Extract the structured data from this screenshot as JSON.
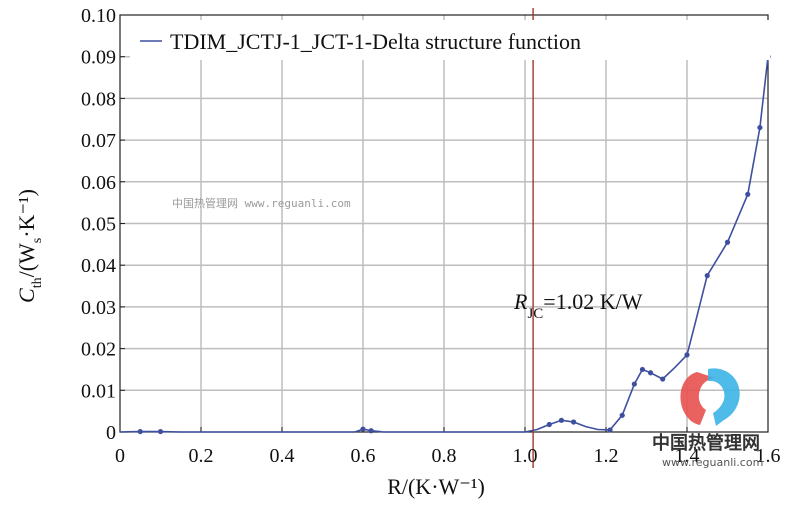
{
  "chart_data": {
    "type": "line",
    "xlabel": "R/(K·W⁻¹)",
    "ylabel_main": "C",
    "ylabel_sub": "th",
    "ylabel_rest": "/(W",
    "ylabel_sub2": "s",
    "ylabel_tail": "·K⁻¹)",
    "xlim": [
      0,
      1.6
    ],
    "ylim": [
      0,
      0.1
    ],
    "x_ticks": [
      "0",
      "0.2",
      "0.4",
      "0.6",
      "0.8",
      "1.0",
      "1.2",
      "1.4",
      "1.6"
    ],
    "y_ticks": [
      "0",
      "0.01",
      "0.02",
      "0.03",
      "0.04",
      "0.05",
      "0.06",
      "0.07",
      "0.08",
      "0.09",
      "0.10"
    ],
    "grid": true,
    "legend_position": "top-right",
    "series": [
      {
        "name": "TDIM_JCTJ-1_JCT-1-Delta structure function",
        "color": "#3f4fa0",
        "points": [
          [
            0.0,
            0.0
          ],
          [
            0.05,
            0.0001
          ],
          [
            0.1,
            0.0001
          ],
          [
            0.15,
            0.0
          ],
          [
            0.2,
            0.0
          ],
          [
            0.3,
            0.0
          ],
          [
            0.4,
            0.0
          ],
          [
            0.5,
            0.0
          ],
          [
            0.58,
            0.0
          ],
          [
            0.6,
            0.0007
          ],
          [
            0.62,
            0.0003
          ],
          [
            0.65,
            0.0
          ],
          [
            0.7,
            0.0
          ],
          [
            0.8,
            0.0
          ],
          [
            0.9,
            0.0
          ],
          [
            1.0,
            0.0
          ],
          [
            1.03,
            0.0006
          ],
          [
            1.06,
            0.0018
          ],
          [
            1.09,
            0.0028
          ],
          [
            1.12,
            0.0024
          ],
          [
            1.15,
            0.0013
          ],
          [
            1.18,
            0.0006
          ],
          [
            1.21,
            0.0005
          ],
          [
            1.24,
            0.004
          ],
          [
            1.27,
            0.0115
          ],
          [
            1.29,
            0.015
          ],
          [
            1.31,
            0.0142
          ],
          [
            1.34,
            0.0127
          ],
          [
            1.37,
            0.0155
          ],
          [
            1.4,
            0.0185
          ],
          [
            1.42,
            0.026
          ],
          [
            1.45,
            0.0375
          ],
          [
            1.5,
            0.0455
          ],
          [
            1.55,
            0.057
          ],
          [
            1.58,
            0.073
          ],
          [
            1.6,
            0.09
          ]
        ],
        "markers": [
          [
            0.05,
            0.0001
          ],
          [
            0.1,
            0.0001
          ],
          [
            0.6,
            0.0007
          ],
          [
            0.62,
            0.0003
          ],
          [
            1.06,
            0.0018
          ],
          [
            1.09,
            0.0028
          ],
          [
            1.12,
            0.0024
          ],
          [
            1.21,
            0.0005
          ],
          [
            1.24,
            0.004
          ],
          [
            1.27,
            0.0115
          ],
          [
            1.29,
            0.015
          ],
          [
            1.31,
            0.0142
          ],
          [
            1.34,
            0.0127
          ],
          [
            1.4,
            0.0185
          ],
          [
            1.45,
            0.0375
          ],
          [
            1.5,
            0.0455
          ],
          [
            1.55,
            0.057
          ],
          [
            1.58,
            0.073
          ],
          [
            1.6,
            0.09
          ]
        ]
      }
    ],
    "annotation": {
      "label_r": "R",
      "label_sub": "JC",
      "label_value": "=1.02 K/W",
      "x": 1.02,
      "line_color": "#a0382c"
    }
  },
  "watermark": {
    "center_text": "中国热管理网 www.reguanli.com",
    "logo_text": "中国热管理网",
    "logo_url": "www.reguanli.com"
  },
  "colors": {
    "grid": "#bdbdbd",
    "axis": "#222222",
    "logo_red": "#e8514f",
    "logo_blue": "#3cb4e6"
  }
}
